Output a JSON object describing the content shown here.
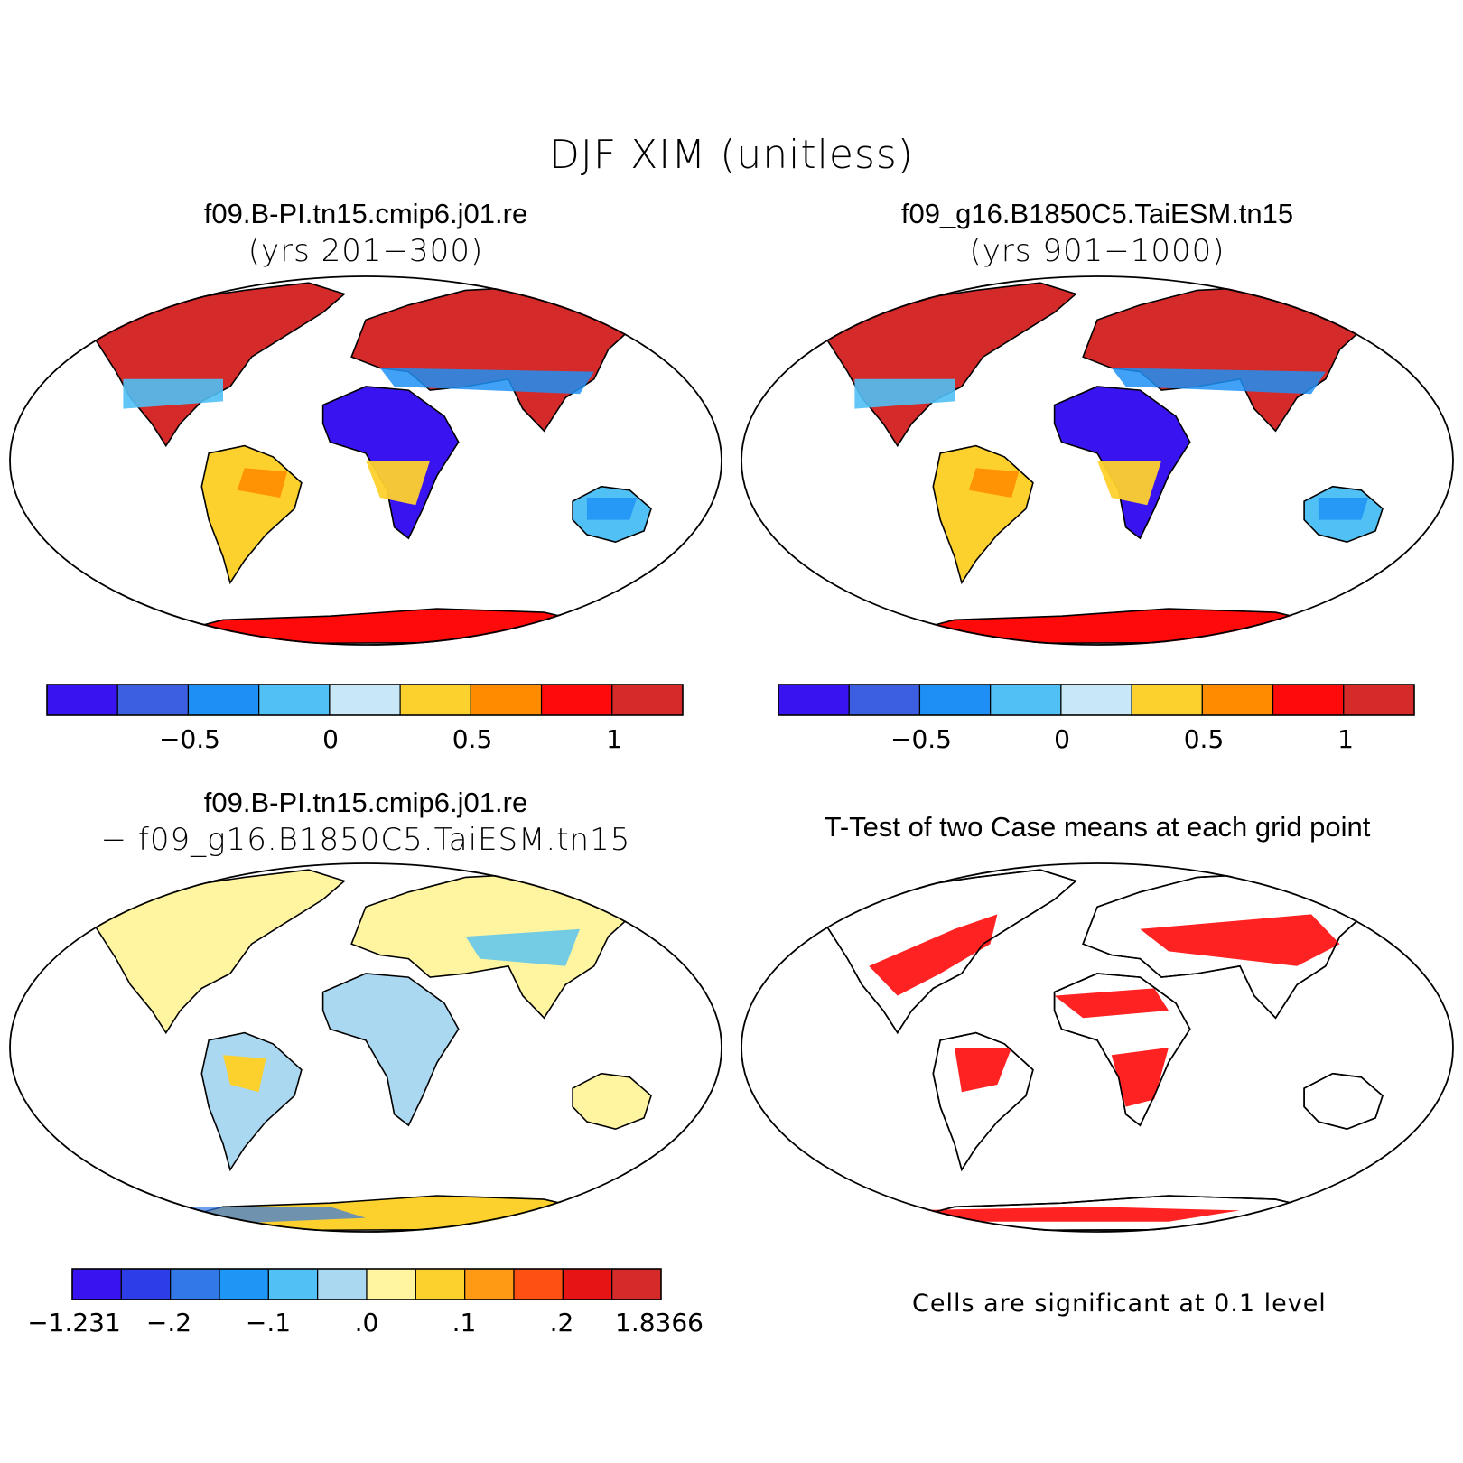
{
  "figure_title": "DJF XIM (unitless)",
  "panels": [
    {
      "title": "f09.B-PI.tn15.cmip6.j01.re",
      "subtitle": "(yrs 201−300)"
    },
    {
      "title": "f09_g16.B1850C5.TaiESM.tn15",
      "subtitle": "(yrs 901−1000)"
    },
    {
      "title": "f09.B-PI.tn15.cmip6.j01.re",
      "subtitle": "− f09_g16.B1850C5.TaiESM.tn15"
    },
    {
      "title": "T-Test of two Case means at each grid point",
      "note": "Cells are significant at 0.1 level"
    }
  ],
  "colorbar_main": {
    "colors": [
      "#3a14f0",
      "#3b5fe0",
      "#1e90f5",
      "#50c0f5",
      "#c8e8f8",
      "#fdd12d",
      "#ff8c00",
      "#ff0a0a",
      "#d42a2a"
    ],
    "tick_labels": [
      "−0.5",
      "0",
      "0.5",
      "1"
    ]
  },
  "colorbar_diff": {
    "colors": [
      "#3a14f0",
      "#2d3ee8",
      "#3278e6",
      "#1e96f5",
      "#50c0f5",
      "#aad8f0",
      "#fff5a0",
      "#fdd12d",
      "#ff9a14",
      "#ff5014",
      "#e61414",
      "#d42a2a"
    ],
    "tick_labels": [
      "−1.231",
      "−.2",
      "−.1",
      ".0",
      ".1",
      ".2",
      "1.8366"
    ]
  },
  "colors": {
    "land_mask": "#d42a2a",
    "significant": "#ff0a0a"
  }
}
